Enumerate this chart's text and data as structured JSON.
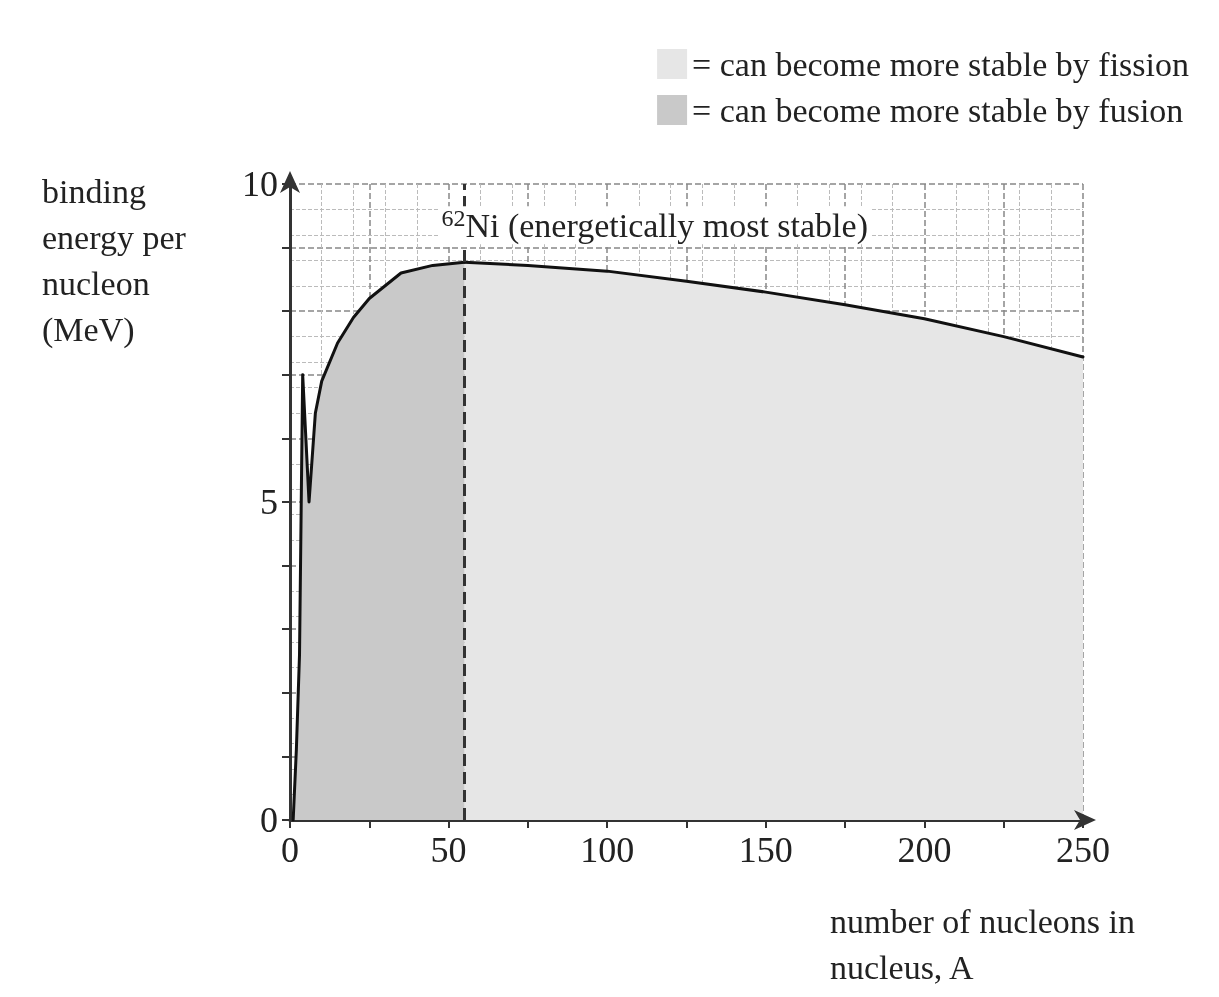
{
  "chart_data": {
    "type": "area",
    "xlabel": "number of nucleons in nucleus, A",
    "ylabel": "binding energy per nucleon (MeV)",
    "series": [
      {
        "name": "= can become more stable by fission",
        "color": "#e6e6e6",
        "x": [
          55,
          75,
          100,
          125,
          150,
          175,
          200,
          225,
          250
        ],
        "values": [
          8.77,
          8.72,
          8.63,
          8.47,
          8.3,
          8.1,
          7.88,
          7.6,
          7.28
        ]
      },
      {
        "name": "= can become more stable by fusion",
        "color": "#c9c9c9",
        "x": [
          1,
          2,
          3,
          4,
          6,
          8,
          10,
          15,
          20,
          25,
          35,
          45,
          55
        ],
        "values": [
          0,
          1.1,
          2.6,
          7.0,
          5.0,
          6.4,
          6.9,
          7.5,
          7.9,
          8.2,
          8.6,
          8.72,
          8.77
        ]
      }
    ],
    "xlim": [
      0,
      250
    ],
    "ylim": [
      0,
      10
    ],
    "xticks": [
      0,
      {
        "value": 25,
        "label": null
      },
      50,
      {
        "value": 75,
        "label": null
      },
      100,
      {
        "value": 125,
        "label": null
      },
      150,
      {
        "value": 175,
        "label": null
      },
      200,
      {
        "value": 225,
        "label": null
      },
      250
    ],
    "yticks": [
      0,
      {
        "value": 1,
        "label": null
      },
      {
        "value": 2,
        "label": null
      },
      {
        "value": 3,
        "label": null
      },
      {
        "value": 4,
        "label": null
      },
      5,
      {
        "value": 6,
        "label": null
      },
      {
        "value": 7,
        "label": null
      },
      {
        "value": 8,
        "label": null
      },
      {
        "value": 9,
        "label": null
      },
      10
    ],
    "ref_lines": [
      {
        "axis": "x",
        "value": 55,
        "line_style": "dashed",
        "color": "#333333"
      }
    ],
    "annotations": [
      {
        "text": "$^{62}$Ni (energetically most stable)",
        "x": 55,
        "y": 8.77
      }
    ],
    "grid": true,
    "legend": "top right",
    "marker": "none",
    "line_style": "solid"
  }
}
